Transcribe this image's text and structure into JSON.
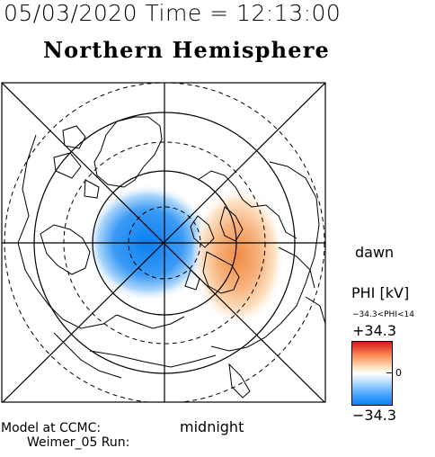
{
  "header": {
    "datetime": "05/03/2020 Time = 12:13:00",
    "title": "Northern Hemisphere"
  },
  "map": {
    "orientation_labels": {
      "right": "dawn",
      "bottom": "midnight"
    },
    "projection": "polar",
    "potential_pattern": "negative cell on dusk/noon side, positive cell on dawn side",
    "colors": {
      "negative": "#0a7ff0",
      "positive": "#f08c46",
      "coast": "#000000"
    }
  },
  "footer": {
    "model_line": "Model at CCMC:",
    "run_line": "Weimer_05 Run:"
  },
  "legend": {
    "title": "PHI [kV]",
    "range_text": "−34.3<PHI<14",
    "max_label": "+34.3",
    "min_label": "−34.3",
    "zero_label": "0",
    "max_value": 34.3,
    "min_value": -34.3
  }
}
